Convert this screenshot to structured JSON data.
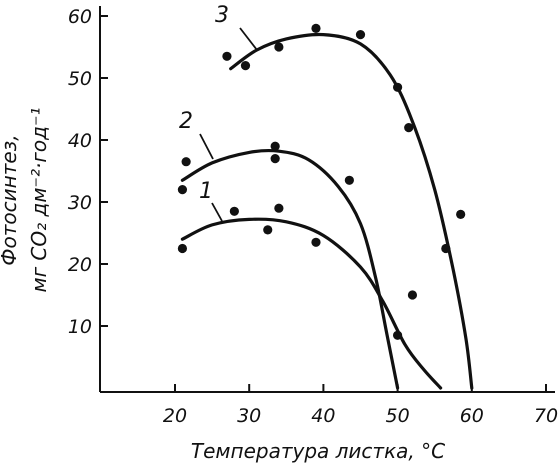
{
  "chart_data": {
    "type": "scatter",
    "xlabel": "Температура листка, °C",
    "ylabel_line1": "Фотосинтез,",
    "ylabel_line2": "мг CO₂ дм⁻²·год⁻¹",
    "xlim": [
      10,
      70
    ],
    "ylim": [
      0,
      60
    ],
    "x_ticks": [
      20,
      30,
      40,
      50,
      60,
      70
    ],
    "y_ticks": [
      10,
      20,
      30,
      40,
      50,
      60
    ],
    "grid": false,
    "series": [
      {
        "name": "1",
        "points": [
          [
            21,
            22.5
          ],
          [
            28,
            28.5
          ],
          [
            32.5,
            25.5
          ],
          [
            34,
            29
          ],
          [
            39,
            23.5
          ],
          [
            50,
            8.5
          ],
          [
            52,
            15
          ]
        ],
        "curve": [
          [
            21,
            24
          ],
          [
            25,
            26.3
          ],
          [
            30,
            27.2
          ],
          [
            35,
            26.8
          ],
          [
            40,
            24.6
          ],
          [
            45,
            19.5
          ],
          [
            48,
            14
          ],
          [
            51,
            7
          ],
          [
            53.5,
            3
          ],
          [
            55.8,
            0
          ]
        ]
      },
      {
        "name": "2",
        "points": [
          [
            21,
            32
          ],
          [
            21.5,
            36.5
          ],
          [
            33.5,
            39
          ],
          [
            33.5,
            37
          ],
          [
            43.5,
            33.5
          ]
        ],
        "curve": [
          [
            21,
            33.5
          ],
          [
            25,
            36.3
          ],
          [
            30,
            38
          ],
          [
            34,
            38.2
          ],
          [
            38,
            36.8
          ],
          [
            42,
            32.5
          ],
          [
            45,
            26.5
          ],
          [
            47,
            18
          ],
          [
            48.5,
            9
          ],
          [
            50,
            0
          ]
        ]
      },
      {
        "name": "3",
        "points": [
          [
            27,
            53.5
          ],
          [
            29.5,
            52
          ],
          [
            34,
            55
          ],
          [
            39,
            58
          ],
          [
            45,
            57
          ],
          [
            50,
            48.5
          ],
          [
            51.5,
            42
          ],
          [
            56.5,
            22.5
          ],
          [
            58.5,
            28
          ]
        ],
        "curve": [
          [
            27.5,
            51.5
          ],
          [
            31,
            54.5
          ],
          [
            35,
            56.3
          ],
          [
            40,
            57
          ],
          [
            45,
            55.5
          ],
          [
            49,
            50.5
          ],
          [
            52,
            43
          ],
          [
            55,
            32
          ],
          [
            57.5,
            19
          ],
          [
            59.2,
            8
          ],
          [
            60,
            0
          ]
        ]
      }
    ]
  }
}
